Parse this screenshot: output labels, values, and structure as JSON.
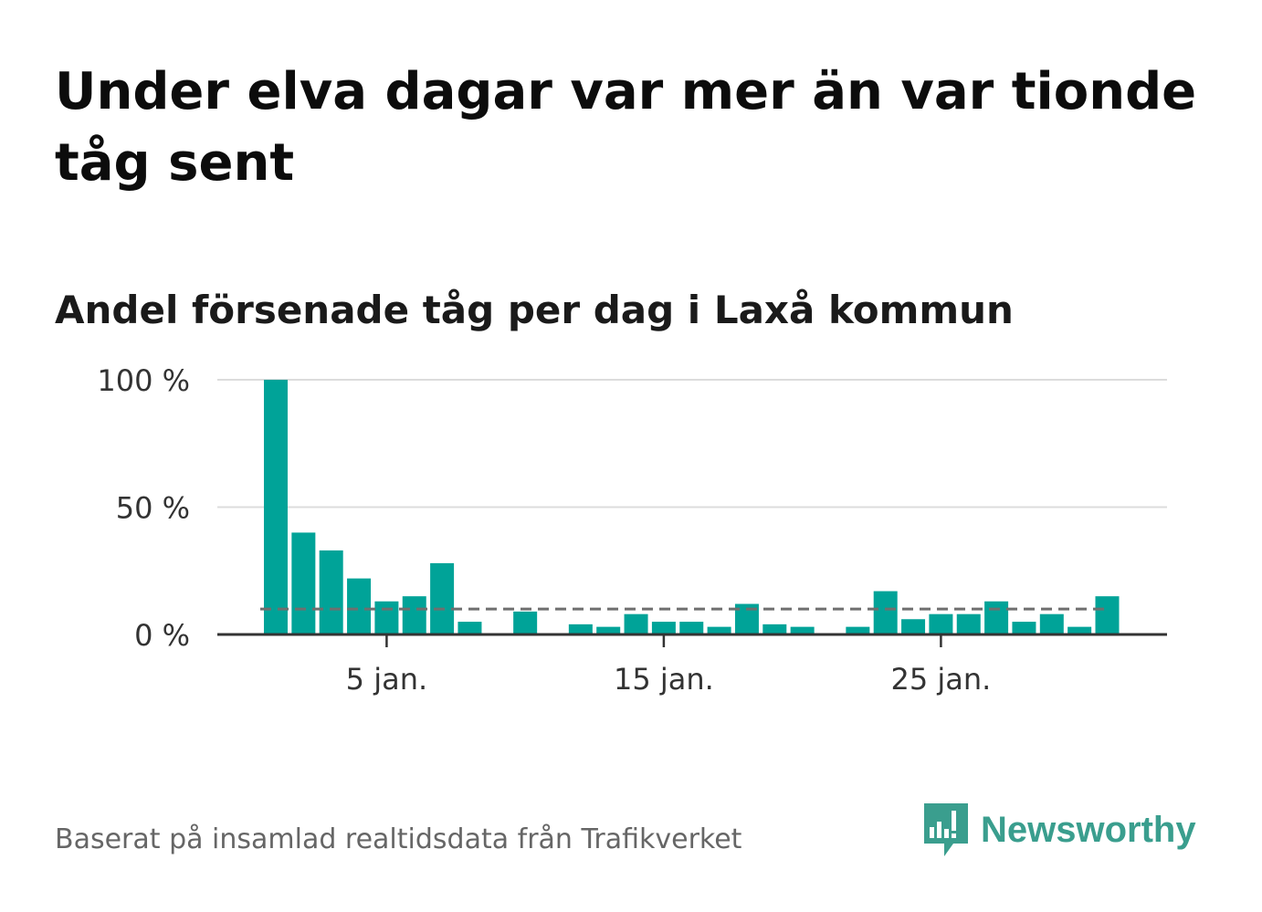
{
  "header": {
    "title": "Under elva dagar var mer än var tionde tåg sent",
    "subtitle": "Andel försenade tåg per dag i Laxå kommun"
  },
  "footer": {
    "source": "Baserat på insamlad realtidsdata från Trafikverket",
    "brand": "Newsworthy"
  },
  "colors": {
    "bar": "#00a398",
    "average_line": "#6f6f6f",
    "grid": "#dcdcdc",
    "axis": "#333333",
    "brand": "#3a9e8e"
  },
  "chart_data": {
    "type": "bar",
    "title": "",
    "xlabel": "",
    "ylabel": "",
    "ylim": [
      0,
      100
    ],
    "y_ticks": [
      {
        "value": 0,
        "label": "0 %"
      },
      {
        "value": 50,
        "label": "50 %"
      },
      {
        "value": 100,
        "label": "100 %"
      }
    ],
    "x_ticks": [
      {
        "day": 5,
        "label": "5 jan."
      },
      {
        "day": 15,
        "label": "15 jan."
      },
      {
        "day": 25,
        "label": "25 jan."
      }
    ],
    "days": [
      1,
      2,
      3,
      4,
      5,
      6,
      7,
      8,
      9,
      10,
      11,
      12,
      13,
      14,
      15,
      16,
      17,
      18,
      19,
      20,
      21,
      22,
      23,
      24,
      25,
      26,
      27,
      28,
      29,
      30,
      31
    ],
    "values": [
      100,
      40,
      33,
      22,
      13,
      15,
      28,
      5,
      null,
      9,
      null,
      4,
      3,
      8,
      5,
      5,
      3,
      12,
      4,
      3,
      null,
      3,
      17,
      6,
      8,
      8,
      13,
      5,
      8,
      3,
      15
    ],
    "average": 10,
    "grid": true,
    "legend": "none"
  }
}
